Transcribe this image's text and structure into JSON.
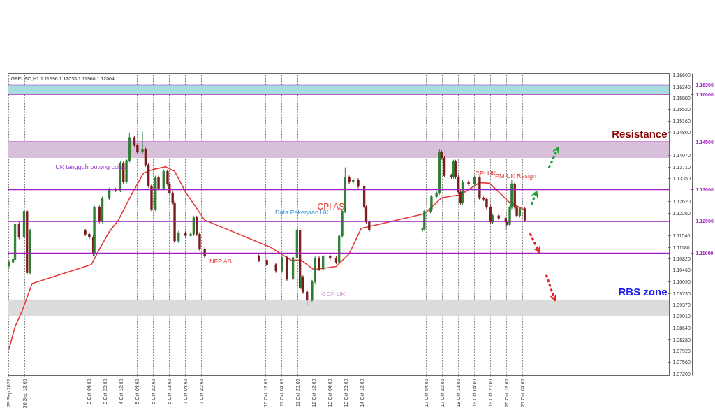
{
  "chart_data": {
    "type": "candlestick",
    "title": "GBPUSD,H1  1.11996 1.12035 1.11966 1.12004",
    "colors": [
      "#2e7d32",
      "#7b1c1c"
    ],
    "series": [
      {
        "x": [
          "2022-09-29T20:00",
          "2022-09-30T00:00",
          "2022-09-30T02:00",
          "2022-09-30T06:00",
          "2022-09-30T11:00",
          "2022-09-30T14:00",
          "2022-09-30T17:00",
          "2022-10-03T00:00",
          "2022-10-03T04:00",
          "2022-10-03T08:00",
          "2022-10-03T09:00",
          "2022-10-03T14:00",
          "2022-10-03T17:00",
          "2022-10-04T00:00",
          "2022-10-04T06:00",
          "2022-10-04T11:00",
          "2022-10-04T14:00",
          "2022-10-04T17:00",
          "2022-10-04T20:00",
          "2022-10-05T01:00",
          "2022-10-05T04:00",
          "2022-10-05T09:00",
          "2022-10-05T12:00",
          "2022-10-05T15:00",
          "2022-10-05T18:00",
          "2022-10-05T22:00",
          "2022-10-06T01:00",
          "2022-10-06T06:00",
          "2022-10-06T10:00",
          "2022-10-06T12:00",
          "2022-10-06T15:00",
          "2022-10-06T17:00",
          "2022-10-06T21:00",
          "2022-10-07T04:00",
          "2022-10-07T09:00",
          "2022-10-07T12:00",
          "2022-10-07T15:00",
          "2022-10-07T18:00",
          "2022-10-07T23:00",
          "2022-10-10T05:00",
          "2022-10-10T13:00",
          "2022-10-10T22:00",
          "2022-10-11T04:00",
          "2022-10-11T09:00",
          "2022-10-11T15:00",
          "2022-10-11T19:00",
          "2022-10-11T22:00",
          "2022-10-11T23:00",
          "2022-10-12T01:00",
          "2022-10-12T05:00",
          "2022-10-12T10:00",
          "2022-10-12T13:00",
          "2022-10-12T17:00",
          "2022-10-12T21:00",
          "2022-10-13T04:00",
          "2022-10-13T10:00",
          "2022-10-13T13:00",
          "2022-10-13T16:00",
          "2022-10-13T19:00",
          "2022-10-13T23:00",
          "2022-10-14T03:00",
          "2022-10-14T08:00",
          "2022-10-14T14:00",
          "2022-10-14T16:00",
          "2022-10-14T19:00",
          "2022-10-17T00:00",
          "2022-10-17T02:00",
          "2022-10-17T08:00",
          "2022-10-17T09:00",
          "2022-10-17T14:00",
          "2022-10-17T17:00",
          "2022-10-17T19:00",
          "2022-10-17T22:00",
          "2022-10-18T05:00",
          "2022-10-18T07:00",
          "2022-10-18T09:00",
          "2022-10-18T12:00",
          "2022-10-18T14:00",
          "2022-10-18T16:00",
          "2022-10-18T22:00",
          "2022-10-19T04:00",
          "2022-10-19T09:00",
          "2022-10-19T13:00",
          "2022-10-19T16:00",
          "2022-10-19T20:00",
          "2022-10-19T22:00",
          "2022-10-20T04:00",
          "2022-10-20T11:00",
          "2022-10-20T12:00",
          "2022-10-20T15:00",
          "2022-10-20T17:00",
          "2022-10-20T20:00",
          "2022-10-20T22:00",
          "2022-10-21T01:00",
          "2022-10-21T06:00"
        ],
        "ohlc": [
          [
            1.106,
            1.1078,
            1.1054,
            1.1072
          ],
          [
            1.1072,
            1.1086,
            1.1066,
            1.108
          ],
          [
            1.108,
            1.1198,
            1.1074,
            1.1192
          ],
          [
            1.1192,
            1.1198,
            1.1144,
            1.115
          ],
          [
            1.115,
            1.1238,
            1.1144,
            1.1232
          ],
          [
            1.1232,
            1.1238,
            1.1032,
            1.1038
          ],
          [
            1.1038,
            1.1176,
            1.1032,
            1.117
          ],
          [
            1.117,
            1.1176,
            1.1154,
            1.116
          ],
          [
            1.116,
            1.1166,
            1.1144,
            1.115
          ],
          [
            1.115,
            1.1156,
            1.1092,
            1.1098
          ],
          [
            1.1098,
            1.125,
            1.1092,
            1.1244
          ],
          [
            1.1244,
            1.125,
            1.1194,
            1.12
          ],
          [
            1.12,
            1.1278,
            1.1194,
            1.1272
          ],
          [
            1.1272,
            1.1306,
            1.1266,
            1.13
          ],
          [
            1.13,
            1.1306,
            1.1292,
            1.1298
          ],
          [
            1.1298,
            1.139,
            1.1292,
            1.1384
          ],
          [
            1.1384,
            1.139,
            1.1318,
            1.1324
          ],
          [
            1.1324,
            1.1398,
            1.1318,
            1.1392
          ],
          [
            1.1392,
            1.1478,
            1.1386,
            1.1464
          ],
          [
            1.1464,
            1.147,
            1.1434,
            1.144
          ],
          [
            1.144,
            1.1446,
            1.1412,
            1.1418
          ],
          [
            1.1418,
            1.1482,
            1.1412,
            1.1426
          ],
          [
            1.1426,
            1.1432,
            1.1372,
            1.1378
          ],
          [
            1.1378,
            1.1384,
            1.1306,
            1.1312
          ],
          [
            1.1312,
            1.1318,
            1.1232,
            1.1238
          ],
          [
            1.1238,
            1.1344,
            1.1232,
            1.1338
          ],
          [
            1.1338,
            1.1344,
            1.1298,
            1.1304
          ],
          [
            1.1304,
            1.1364,
            1.1298,
            1.1358
          ],
          [
            1.1358,
            1.1364,
            1.1312,
            1.1318
          ],
          [
            1.1318,
            1.1324,
            1.1284,
            1.129
          ],
          [
            1.129,
            1.1296,
            1.1252,
            1.1258
          ],
          [
            1.1258,
            1.1264,
            1.1132,
            1.1138
          ],
          [
            1.1138,
            1.117,
            1.1132,
            1.1164
          ],
          [
            1.1164,
            1.117,
            1.1149,
            1.1155
          ],
          [
            1.1155,
            1.1166,
            1.1149,
            1.116
          ],
          [
            1.116,
            1.1218,
            1.1154,
            1.1212
          ],
          [
            1.1212,
            1.1218,
            1.1154,
            1.116
          ],
          [
            1.116,
            1.1166,
            1.1106,
            1.1112
          ],
          [
            1.1112,
            1.1118,
            1.1084,
            1.109
          ],
          [
            1.109,
            1.1096,
            1.1072,
            1.1078
          ],
          [
            1.1078,
            1.1084,
            1.1058,
            1.1064
          ],
          [
            1.1064,
            1.107,
            1.1038,
            1.1044
          ],
          [
            1.1044,
            1.1092,
            1.1038,
            1.1086
          ],
          [
            1.1086,
            1.1092,
            1.1012,
            1.1018
          ],
          [
            1.1018,
            1.1092,
            1.1012,
            1.1086
          ],
          [
            1.1086,
            1.1178,
            1.108,
            1.1172
          ],
          [
            1.1172,
            1.1178,
            1.0986,
            1.0992
          ],
          [
            1.0992,
            1.103,
            1.0986,
            1.1024
          ],
          [
            1.1024,
            1.103,
            1.0972,
            1.0978
          ],
          [
            1.0978,
            1.0984,
            1.0934,
            1.0952
          ],
          [
            1.0952,
            1.1016,
            1.0946,
            1.101
          ],
          [
            1.101,
            1.109,
            1.1004,
            1.1084
          ],
          [
            1.1084,
            1.109,
            1.1044,
            1.105
          ],
          [
            1.105,
            1.1096,
            1.1044,
            1.109
          ],
          [
            1.109,
            1.1096,
            1.1078,
            1.1084
          ],
          [
            1.1084,
            1.109,
            1.1066,
            1.1072
          ],
          [
            1.1072,
            1.116,
            1.1066,
            1.1154
          ],
          [
            1.1154,
            1.1238,
            1.1148,
            1.1232
          ],
          [
            1.1232,
            1.137,
            1.1226,
            1.1338
          ],
          [
            1.1338,
            1.1344,
            1.1318,
            1.1324
          ],
          [
            1.1324,
            1.1336,
            1.1318,
            1.133
          ],
          [
            1.133,
            1.1336,
            1.1304,
            1.131
          ],
          [
            1.131,
            1.1316,
            1.1238,
            1.1244
          ],
          [
            1.1244,
            1.125,
            1.1192,
            1.1198
          ],
          [
            1.1198,
            1.1204,
            1.1166,
            1.1172
          ],
          [
            1.1172,
            1.1182,
            1.1166,
            1.1176
          ],
          [
            1.1176,
            1.1238,
            1.117,
            1.1232
          ],
          [
            1.1232,
            1.1242,
            1.1226,
            1.1236
          ],
          [
            1.1236,
            1.1284,
            1.123,
            1.1278
          ],
          [
            1.1278,
            1.1296,
            1.1272,
            1.129
          ],
          [
            1.129,
            1.1426,
            1.1284,
            1.1418
          ],
          [
            1.1418,
            1.1424,
            1.1394,
            1.14
          ],
          [
            1.14,
            1.1406,
            1.1338,
            1.1344
          ],
          [
            1.1344,
            1.135,
            1.1334,
            1.134
          ],
          [
            1.134,
            1.1394,
            1.1334,
            1.1388
          ],
          [
            1.1388,
            1.1394,
            1.1334,
            1.134
          ],
          [
            1.134,
            1.1346,
            1.1286,
            1.1292
          ],
          [
            1.1292,
            1.1298,
            1.1252,
            1.1258
          ],
          [
            1.1258,
            1.133,
            1.1252,
            1.1324
          ],
          [
            1.1324,
            1.133,
            1.1312,
            1.1318
          ],
          [
            1.1318,
            1.1344,
            1.1312,
            1.1338
          ],
          [
            1.1338,
            1.1344,
            1.1266,
            1.1272
          ],
          [
            1.1272,
            1.1278,
            1.1264,
            1.127
          ],
          [
            1.127,
            1.1276,
            1.1238,
            1.1244
          ],
          [
            1.1244,
            1.125,
            1.1192,
            1.1198
          ],
          [
            1.1198,
            1.1224,
            1.1192,
            1.1218
          ],
          [
            1.1218,
            1.1224,
            1.1204,
            1.121
          ],
          [
            1.121,
            1.1216,
            1.1172,
            1.1198
          ],
          [
            1.1198,
            1.1204,
            1.1184,
            1.119
          ],
          [
            1.119,
            1.125,
            1.1184,
            1.1244
          ],
          [
            1.1244,
            1.133,
            1.1238,
            1.1318
          ],
          [
            1.1318,
            1.1324,
            1.1238,
            1.1244
          ],
          [
            1.1244,
            1.125,
            1.1212,
            1.1218
          ],
          [
            1.1218,
            1.1246,
            1.1212,
            1.124
          ],
          [
            1.124,
            1.1246,
            1.1198,
            1.1204
          ]
        ]
      },
      {
        "type": "line",
        "color": "#e53935",
        "x": [
          "2022-09-29T20:00",
          "2022-09-30T02:00",
          "2022-09-30T09:00",
          "2022-09-30T19:00",
          "2022-10-03T06:00",
          "2022-10-03T14:00",
          "2022-10-04T00:00",
          "2022-10-04T09:00",
          "2022-10-04T22:00",
          "2022-10-05T10:00",
          "2022-10-05T20:00",
          "2022-10-06T08:00",
          "2022-10-06T17:00",
          "2022-10-07T04:00",
          "2022-10-07T23:00",
          "2022-10-10T17:00",
          "2022-10-11T13:00",
          "2022-10-11T23:00",
          "2022-10-12T12:00",
          "2022-10-13T10:00",
          "2022-10-13T23:00",
          "2022-10-14T11:00",
          "2022-10-17T02:00",
          "2022-10-17T19:00",
          "2022-10-18T14:00",
          "2022-10-19T09:00",
          "2022-10-19T19:00",
          "2022-10-20T14:00",
          "2022-10-21T07:00"
        ],
        "values": [
          1.0798,
          1.0868,
          1.0918,
          1.1004,
          1.1064,
          1.1112,
          1.1168,
          1.1204,
          1.1284,
          1.1352,
          1.1364,
          1.1372,
          1.1358,
          1.1292,
          1.1204,
          1.1118,
          1.1078,
          1.1078,
          1.1048,
          1.1058,
          1.1098,
          1.1178,
          1.1224,
          1.1274,
          1.1284,
          1.1322,
          1.132,
          1.1262,
          1.1234
        ]
      }
    ],
    "xlim": [
      "2022-09-29T19:00",
      "2022-10-27T06:00"
    ],
    "xticks": [
      {
        "value": "2022-09-29T20:00",
        "label": "29 Sep 2022"
      },
      {
        "value": "2022-09-30T12:00",
        "label": "30 Sep 12:00"
      },
      {
        "value": "2022-10-03T04:00",
        "label": "3 Oct 04:00"
      },
      {
        "value": "2022-10-03T20:00",
        "label": "3 Oct 20:00"
      },
      {
        "value": "2022-10-04T12:00",
        "label": "4 Oct 12:00"
      },
      {
        "value": "2022-10-05T04:00",
        "label": "5 Oct 04:00"
      },
      {
        "value": "2022-10-05T20:00",
        "label": "5 Oct 20:00"
      },
      {
        "value": "2022-10-06T12:00",
        "label": "6 Oct 12:00"
      },
      {
        "value": "2022-10-07T04:00",
        "label": "7 Oct 04:00"
      },
      {
        "value": "2022-10-07T20:00",
        "label": "7 Oct 20:00"
      },
      {
        "value": "2022-10-10T12:00",
        "label": "10 Oct 12:00"
      },
      {
        "value": "2022-10-11T04:00",
        "label": "11 Oct 04:00"
      },
      {
        "value": "2022-10-11T20:00",
        "label": "11 Oct 20:00"
      },
      {
        "value": "2022-10-12T12:00",
        "label": "12 Oct 12:00"
      },
      {
        "value": "2022-10-13T04:00",
        "label": "13 Oct 04:00"
      },
      {
        "value": "2022-10-13T20:00",
        "label": "13 Oct 20:00"
      },
      {
        "value": "2022-10-14T12:00",
        "label": "14 Oct 12:00"
      },
      {
        "value": "2022-10-17T04:00",
        "label": "17 Oct 04:00"
      },
      {
        "value": "2022-10-17T20:00",
        "label": "17 Oct 20:00"
      },
      {
        "value": "2022-10-18T12:00",
        "label": "18 Oct 12:00"
      },
      {
        "value": "2022-10-19T04:00",
        "label": "19 Oct 04:00"
      },
      {
        "value": "2022-10-19T20:00",
        "label": "19 Oct 20:00"
      },
      {
        "value": "2022-10-20T12:00",
        "label": "20 Oct 12:00"
      },
      {
        "value": "2022-10-21T04:00",
        "label": "21 Oct 04:00"
      }
    ],
    "ylim": [
      1.0715,
      1.1665
    ],
    "yticks": [
      {
        "value": 1.072,
        "label": "1.07200"
      },
      {
        "value": 1.0756,
        "label": "1.07560"
      },
      {
        "value": 1.0792,
        "label": "1.07920"
      },
      {
        "value": 1.0828,
        "label": "1.08280"
      },
      {
        "value": 1.0864,
        "label": "1.08640"
      },
      {
        "value": 1.0901,
        "label": "1.09010"
      },
      {
        "value": 1.0937,
        "label": "1.09370"
      },
      {
        "value": 1.0973,
        "label": "1.09730"
      },
      {
        "value": 1.1009,
        "label": "1.10090"
      },
      {
        "value": 1.1046,
        "label": "1.10460"
      },
      {
        "value": 1.1082,
        "label": "1.10820"
      },
      {
        "value": 1.1118,
        "label": "1.11180"
      },
      {
        "value": 1.1154,
        "label": "1.11540"
      },
      {
        "value": 1.1226,
        "label": "1.12260"
      },
      {
        "value": 1.1262,
        "label": "1.12620"
      },
      {
        "value": 1.1335,
        "label": "1.13350"
      },
      {
        "value": 1.1371,
        "label": "1.13710"
      },
      {
        "value": 1.1407,
        "label": "1.14070"
      },
      {
        "value": 1.148,
        "label": "1.14800"
      },
      {
        "value": 1.1516,
        "label": "1.15160"
      },
      {
        "value": 1.1552,
        "label": "1.15520"
      },
      {
        "value": 1.1588,
        "label": "1.15880"
      },
      {
        "value": 1.1624,
        "label": "1.16240"
      },
      {
        "value": 1.166,
        "label": "1.16600"
      }
    ],
    "grid": "x",
    "bands": [
      {
        "axis": "y",
        "from": 1.16,
        "to": 1.163,
        "color": "#a8dde0"
      },
      {
        "axis": "y",
        "from": 1.14,
        "to": 1.145,
        "color": "#d8c0da",
        "label": "Resistance"
      },
      {
        "axis": "y",
        "from": 1.0902,
        "to": 1.0954,
        "color": "#dcdcdc",
        "label": "RBS zone"
      }
    ],
    "ref_lines": [
      {
        "axis": "y",
        "value": 1.163,
        "label": "1.16300",
        "color": "#a020c0"
      },
      {
        "axis": "y",
        "value": 1.16,
        "label": "1.16000",
        "color": "#a020c0"
      },
      {
        "axis": "y",
        "value": 1.145,
        "label": "1.14500",
        "color": "#a020c0"
      },
      {
        "axis": "y",
        "value": 1.13,
        "label": "1.13000",
        "color": "#a020c0"
      },
      {
        "axis": "y",
        "value": 1.12,
        "label": "1.12000",
        "color": "#a020c0"
      },
      {
        "axis": "y",
        "value": 1.11,
        "label": "1.11000",
        "color": "#a020c0"
      }
    ],
    "annotations": [
      "UK tangguh potong cukai",
      "NFP AS",
      "Data Pekerjaan UK",
      "GDP UK",
      "CPI AS",
      "CPI UK",
      "PM UK Resign"
    ]
  }
}
